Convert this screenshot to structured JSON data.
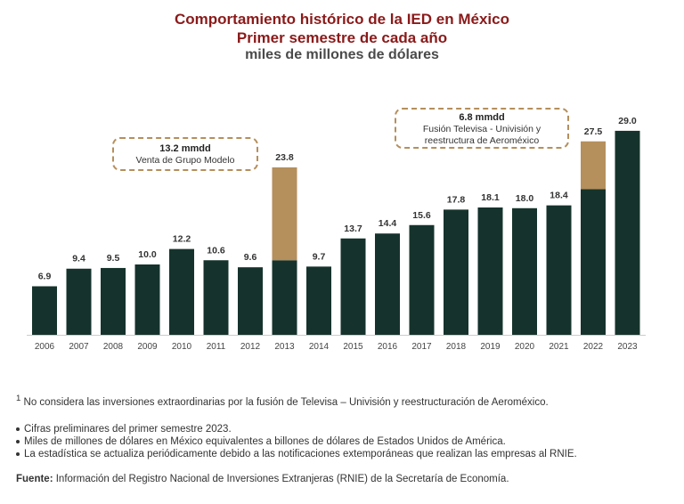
{
  "title": [
    "Comportamiento histórico de la IED en México",
    "Primer semestre de cada año",
    "miles de millones de dólares"
  ],
  "colors": {
    "base": "#15332c",
    "extraordinary": "#b58f5c",
    "title": "#8b1a1a"
  },
  "chart_data": {
    "type": "bar",
    "stacked": true,
    "categories": [
      "2006",
      "2007",
      "2008",
      "2009",
      "2010",
      "2011",
      "2012",
      "2013",
      "2014",
      "2015",
      "2016",
      "2017",
      "2018",
      "2019",
      "2020",
      "2021",
      "2022",
      "2023"
    ],
    "totals": [
      6.9,
      9.4,
      9.5,
      10.0,
      12.2,
      10.6,
      9.6,
      23.8,
      9.7,
      13.7,
      14.4,
      15.6,
      17.8,
      18.1,
      18.0,
      18.4,
      27.5,
      29.0
    ],
    "total_labels": [
      "6.9",
      "9.4",
      "9.5",
      "10.0",
      "12.2",
      "10.6",
      "9.6",
      "23.8",
      "9.7",
      "13.7",
      "14.4",
      "15.6",
      "17.8",
      "18.1",
      "18.0",
      "18.4",
      "27.5",
      "29.0"
    ],
    "extraordinary": [
      0,
      0,
      0,
      0,
      0,
      0,
      0,
      13.2,
      0,
      0,
      0,
      0,
      0,
      0,
      0,
      0,
      6.8,
      0
    ],
    "ylim": [
      0,
      30
    ],
    "grid": false,
    "annotations": [
      {
        "category": "2013",
        "value": "13.2 mmdd",
        "text": [
          "Venta de Grupo Modelo"
        ]
      },
      {
        "category": "2022",
        "value": "6.8 mmdd",
        "text": [
          "Fusión Televisa - Univisión y",
          "reestructura de Aeroméxico"
        ]
      }
    ]
  },
  "footnote": {
    "mark": "1",
    "text": "No considera las inversiones extraordinarias por la fusión de Televisa – Univisión y reestructuración de Aeroméxico."
  },
  "bullets": [
    "Cifras preliminares del primer semestre 2023.",
    "Miles de millones de dólares en México equivalentes a billones de dólares de Estados Unidos de América.",
    "La estadística se actualiza periódicamente debido a las notificaciones extemporáneas que realizan las empresas al RNIE."
  ],
  "source": {
    "label": "Fuente:",
    "text": " Información del Registro Nacional de Inversiones Extranjeras (RNIE) de la Secretaría de Economía."
  }
}
